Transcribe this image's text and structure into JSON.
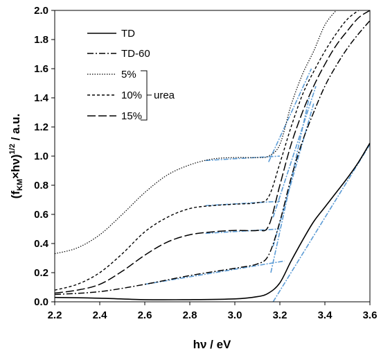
{
  "chart_data": {
    "type": "line",
    "title": "",
    "xlabel": "hν / eV",
    "ylabel_parts": [
      "(f",
      "KM",
      "×hν)",
      "1/2",
      " / a.u."
    ],
    "xlim": [
      2.2,
      3.6
    ],
    "ylim": [
      0.0,
      2.0
    ],
    "xticks": [
      "2.2",
      "2.4",
      "2.6",
      "2.8",
      "3.0",
      "3.2",
      "3.4",
      "3.6"
    ],
    "yticks": [
      "0.0",
      "0.2",
      "0.4",
      "0.6",
      "0.8",
      "1.0",
      "1.2",
      "1.4",
      "1.6",
      "1.8",
      "2.0"
    ],
    "grid": false,
    "legend_position": "top-left",
    "legend_group_label": "urea",
    "series": [
      {
        "name": "TD",
        "style": "solid",
        "color": "#000000",
        "points": [
          [
            2.2,
            0.03
          ],
          [
            2.4,
            0.025
          ],
          [
            2.6,
            0.015
          ],
          [
            2.8,
            0.015
          ],
          [
            3.0,
            0.02
          ],
          [
            3.1,
            0.035
          ],
          [
            3.15,
            0.06
          ],
          [
            3.2,
            0.13
          ],
          [
            3.25,
            0.28
          ],
          [
            3.3,
            0.42
          ],
          [
            3.35,
            0.55
          ],
          [
            3.4,
            0.65
          ],
          [
            3.45,
            0.75
          ],
          [
            3.5,
            0.85
          ],
          [
            3.55,
            0.96
          ],
          [
            3.6,
            1.09
          ]
        ]
      },
      {
        "name": "TD-60",
        "style": "dashdot",
        "color": "#000000",
        "points": [
          [
            2.2,
            0.05
          ],
          [
            2.4,
            0.07
          ],
          [
            2.6,
            0.12
          ],
          [
            2.8,
            0.18
          ],
          [
            3.0,
            0.23
          ],
          [
            3.1,
            0.26
          ],
          [
            3.15,
            0.32
          ],
          [
            3.2,
            0.55
          ],
          [
            3.25,
            0.85
          ],
          [
            3.3,
            1.1
          ],
          [
            3.35,
            1.3
          ],
          [
            3.4,
            1.48
          ],
          [
            3.45,
            1.62
          ],
          [
            3.5,
            1.74
          ],
          [
            3.55,
            1.84
          ],
          [
            3.6,
            1.93
          ]
        ]
      },
      {
        "name": "5%",
        "style": "dotted",
        "color": "#000000",
        "points": [
          [
            2.2,
            0.33
          ],
          [
            2.3,
            0.37
          ],
          [
            2.4,
            0.46
          ],
          [
            2.5,
            0.6
          ],
          [
            2.6,
            0.75
          ],
          [
            2.7,
            0.87
          ],
          [
            2.8,
            0.94
          ],
          [
            2.9,
            0.98
          ],
          [
            3.0,
            0.99
          ],
          [
            3.1,
            0.99
          ],
          [
            3.15,
            1.0
          ],
          [
            3.2,
            1.08
          ],
          [
            3.25,
            1.35
          ],
          [
            3.3,
            1.56
          ],
          [
            3.35,
            1.72
          ],
          [
            3.4,
            1.9
          ],
          [
            3.45,
            2.0
          ]
        ]
      },
      {
        "name": "10%",
        "style": "dashed",
        "color": "#000000",
        "points": [
          [
            2.2,
            0.08
          ],
          [
            2.3,
            0.12
          ],
          [
            2.4,
            0.2
          ],
          [
            2.5,
            0.33
          ],
          [
            2.6,
            0.48
          ],
          [
            2.7,
            0.58
          ],
          [
            2.8,
            0.64
          ],
          [
            2.9,
            0.66
          ],
          [
            3.0,
            0.67
          ],
          [
            3.1,
            0.68
          ],
          [
            3.15,
            0.72
          ],
          [
            3.2,
            0.95
          ],
          [
            3.25,
            1.2
          ],
          [
            3.3,
            1.42
          ],
          [
            3.35,
            1.58
          ],
          [
            3.4,
            1.72
          ],
          [
            3.45,
            1.84
          ],
          [
            3.5,
            1.94
          ],
          [
            3.55,
            2.0
          ]
        ]
      },
      {
        "name": "15%",
        "style": "longdash",
        "color": "#000000",
        "points": [
          [
            2.2,
            0.06
          ],
          [
            2.3,
            0.08
          ],
          [
            2.4,
            0.12
          ],
          [
            2.5,
            0.21
          ],
          [
            2.6,
            0.32
          ],
          [
            2.7,
            0.41
          ],
          [
            2.8,
            0.46
          ],
          [
            2.9,
            0.48
          ],
          [
            3.0,
            0.49
          ],
          [
            3.1,
            0.49
          ],
          [
            3.15,
            0.52
          ],
          [
            3.2,
            0.8
          ],
          [
            3.25,
            1.08
          ],
          [
            3.3,
            1.3
          ],
          [
            3.35,
            1.48
          ],
          [
            3.4,
            1.63
          ],
          [
            3.45,
            1.76
          ],
          [
            3.5,
            1.86
          ],
          [
            3.55,
            1.95
          ],
          [
            3.6,
            2.0
          ]
        ]
      }
    ],
    "tangents": [
      {
        "color": "#5b9bd5",
        "points": [
          [
            2.87,
            0.97
          ],
          [
            3.2,
            1.0
          ]
        ]
      },
      {
        "color": "#5b9bd5",
        "points": [
          [
            3.15,
            0.96
          ],
          [
            3.34,
            1.6
          ]
        ]
      },
      {
        "color": "#5b9bd5",
        "points": [
          [
            2.87,
            0.66
          ],
          [
            3.2,
            0.69
          ]
        ]
      },
      {
        "color": "#5b9bd5",
        "points": [
          [
            3.17,
            0.58
          ],
          [
            3.36,
            1.48
          ]
        ]
      },
      {
        "color": "#5b9bd5",
        "points": [
          [
            2.87,
            0.47
          ],
          [
            3.2,
            0.5
          ]
        ]
      },
      {
        "color": "#5b9bd5",
        "points": [
          [
            3.17,
            0.38
          ],
          [
            3.35,
            1.36
          ]
        ]
      },
      {
        "color": "#5b9bd5",
        "points": [
          [
            2.6,
            0.12
          ],
          [
            3.22,
            0.28
          ]
        ]
      },
      {
        "color": "#5b9bd5",
        "points": [
          [
            3.16,
            0.2
          ],
          [
            3.33,
            1.4
          ]
        ]
      },
      {
        "color": "#5b9bd5",
        "points": [
          [
            3.17,
            0.0
          ],
          [
            3.6,
            1.08
          ]
        ]
      }
    ]
  }
}
